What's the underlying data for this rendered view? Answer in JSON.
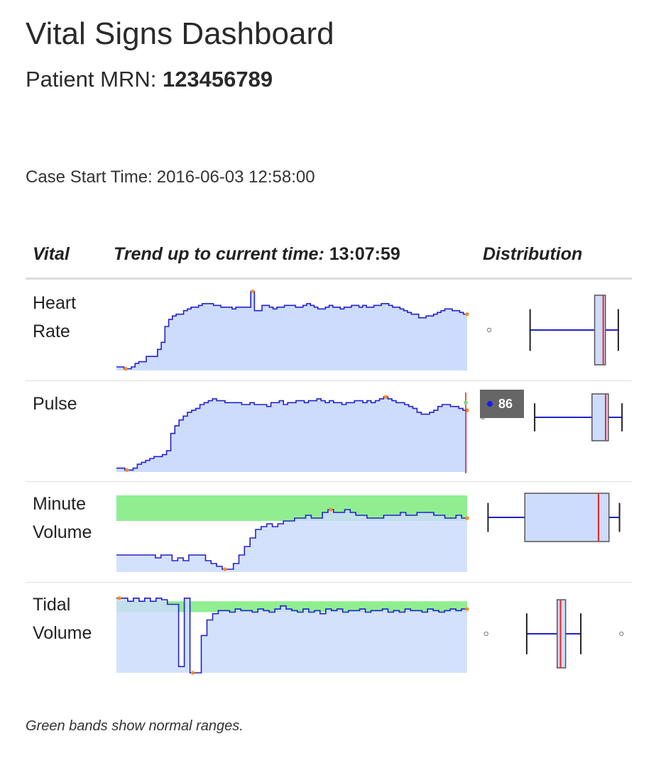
{
  "header": {
    "title": "Vital Signs Dashboard",
    "mrn_label": "Patient MRN: ",
    "mrn_value": "123456789"
  },
  "case": {
    "label": "Case Start Time:",
    "value": "2016-06-03 12:58:00"
  },
  "table": {
    "col_vital": "Vital",
    "col_trend": "Trend up to current time: ",
    "current_time": "13:07:59",
    "col_distribution": "Distribution"
  },
  "vitals": [
    {
      "name_line1": "Heart",
      "name_line2": "Rate"
    },
    {
      "name_line1": "Pulse",
      "name_line2": ""
    },
    {
      "name_line1": "Minute",
      "name_line2": "Volume"
    },
    {
      "name_line1": "Tidal",
      "name_line2": "Volume"
    }
  ],
  "tooltip": {
    "value": "86"
  },
  "footnote": "Green bands show normal ranges.",
  "colors": {
    "line": "#2222cc",
    "area": "#cddcfc",
    "normal_band": "#90ee90",
    "median": "#ff2020",
    "marker": "#ff8c1a"
  },
  "chart_data": [
    {
      "type": "area",
      "name": "Heart Rate",
      "values": [
        52,
        52,
        51,
        51,
        52,
        54,
        55,
        55,
        58,
        58,
        58,
        62,
        66,
        75,
        79,
        81,
        82,
        82,
        84,
        85,
        86,
        86,
        87,
        88,
        88,
        88,
        87,
        87,
        86,
        86,
        86,
        85,
        86,
        86,
        86,
        86,
        95,
        84,
        84,
        87,
        87,
        86,
        85,
        86,
        86,
        87,
        87,
        87,
        86,
        86,
        87,
        88,
        87,
        86,
        85,
        85,
        86,
        87,
        86,
        86,
        85,
        86,
        86,
        87,
        87,
        86,
        87,
        86,
        86,
        87,
        87,
        88,
        88,
        87,
        86,
        86,
        85,
        84,
        83,
        82,
        82,
        80,
        80,
        81,
        81,
        82,
        83,
        84,
        85,
        85,
        84,
        84,
        83,
        82
      ],
      "ylim": [
        50,
        96
      ],
      "box": {
        "whisker_low": 52,
        "q1": 82,
        "median": 86,
        "q3": 87,
        "whisker_high": 93,
        "outliers": [
          33
        ]
      }
    },
    {
      "type": "area",
      "name": "Pulse",
      "values": [
        52,
        52,
        51,
        51,
        52,
        54,
        55,
        56,
        57,
        58,
        58,
        59,
        61,
        70,
        74,
        77,
        79,
        81,
        82,
        83,
        85,
        86,
        87,
        88,
        87,
        87,
        86,
        86,
        86,
        86,
        85,
        85,
        86,
        85,
        85,
        85,
        84,
        86,
        86,
        87,
        85,
        86,
        86,
        87,
        87,
        86,
        87,
        87,
        88,
        87,
        86,
        87,
        86,
        86,
        85,
        86,
        86,
        87,
        87,
        86,
        87,
        86,
        87,
        88,
        89,
        88,
        87,
        86,
        86,
        85,
        84,
        83,
        81,
        80,
        80,
        81,
        82,
        84,
        85,
        85,
        84,
        84,
        83,
        82
      ],
      "ylim": [
        50,
        92
      ],
      "box": {
        "whisker_low": 59,
        "q1": 80,
        "median": 85,
        "q3": 86,
        "whisker_high": 91,
        "outliers": [
          40
        ]
      },
      "cursor_value": 86
    },
    {
      "type": "area",
      "name": "Minute Volume",
      "values": [
        2.0,
        2.0,
        2.0,
        2.0,
        2.0,
        2.0,
        2.0,
        1.9,
        2.0,
        2.0,
        1.8,
        1.9,
        1.8,
        2.0,
        2.0,
        2.0,
        1.8,
        1.7,
        1.6,
        1.5,
        1.5,
        1.7,
        2.0,
        2.3,
        2.6,
        2.9,
        3.0,
        3.1,
        3.0,
        3.1,
        3.2,
        3.2,
        3.3,
        3.3,
        3.4,
        3.3,
        3.3,
        3.5,
        3.6,
        3.5,
        3.5,
        3.6,
        3.5,
        3.4,
        3.4,
        3.3,
        3.3,
        3.3,
        3.4,
        3.4,
        3.4,
        3.5,
        3.4,
        3.4,
        3.5,
        3.5,
        3.5,
        3.4,
        3.4,
        3.3,
        3.3,
        3.4,
        3.3
      ],
      "ylim": [
        1.4,
        4.2
      ],
      "normal_range": [
        3.2,
        4.1
      ],
      "box": {
        "whisker_low": 2.1,
        "q1": 2.8,
        "median": 4.2,
        "q3": 4.4,
        "whisker_high": 4.6
      }
    },
    {
      "type": "area",
      "name": "Tidal Volume",
      "values": [
        540,
        540,
        530,
        540,
        530,
        540,
        530,
        540,
        535,
        520,
        520,
        320,
        540,
        300,
        300,
        420,
        470,
        490,
        500,
        500,
        495,
        505,
        500,
        500,
        495,
        505,
        500,
        495,
        505,
        515,
        505,
        500,
        495,
        505,
        495,
        500,
        490,
        505,
        500,
        505,
        495,
        500,
        500,
        505,
        495,
        500,
        500,
        505,
        495,
        500,
        495,
        505,
        500,
        500,
        495,
        505,
        500,
        495,
        500,
        505,
        500,
        505
      ],
      "ylim": [
        300,
        560
      ],
      "normal_range": [
        495,
        530
      ],
      "box": {
        "whisker_low": 360,
        "q1": 450,
        "median": 460,
        "q3": 475,
        "whisker_high": 520,
        "outliers": [
          240,
          640
        ]
      }
    }
  ]
}
